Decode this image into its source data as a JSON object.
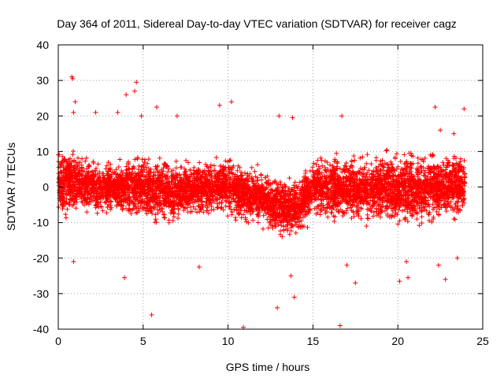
{
  "chart_data": {
    "type": "scatter",
    "title": "Day 364 of 2011, Sidereal Day-to-day VTEC variation (SDTVAR) for receiver cagz",
    "xlabel": "GPS time / hours",
    "ylabel": "SDTVAR / TECUs",
    "xlim": [
      0,
      25
    ],
    "ylim": [
      -40,
      40
    ],
    "xticks": [
      "0",
      "5",
      "10",
      "15",
      "20",
      "25"
    ],
    "yticks": [
      "40",
      "30",
      "20",
      "10",
      "0",
      "-10",
      "-20",
      "-30",
      "-40"
    ],
    "grid": true,
    "marker": "+",
    "series": [
      {
        "name": "SDTVAR",
        "color": "#ff0000",
        "x_range": [
          0,
          23.95
        ],
        "envelope_hours": [
          0,
          1,
          2,
          3,
          4,
          5,
          6,
          7,
          8,
          9,
          10,
          11,
          12,
          13,
          14,
          15,
          16,
          17,
          18,
          19,
          20,
          21,
          22,
          23,
          24
        ],
        "envelope_low": [
          -12,
          -10,
          -9,
          -9,
          -10,
          -11,
          -13,
          -12,
          -10,
          -10,
          -10,
          -12,
          -13,
          -16,
          -16,
          -10,
          -12,
          -12,
          -13,
          -13,
          -14,
          -14,
          -14,
          -12,
          -11
        ],
        "envelope_high": [
          15,
          13,
          9,
          9,
          10,
          11,
          11,
          10,
          9,
          10,
          11,
          8,
          7,
          5,
          4,
          11,
          12,
          11,
          12,
          13,
          12,
          13,
          14,
          13,
          12
        ],
        "outliers": [
          [
            0.8,
            31
          ],
          [
            0.85,
            30.5
          ],
          [
            1.0,
            24
          ],
          [
            0.9,
            21
          ],
          [
            0.9,
            -21
          ],
          [
            2.2,
            21
          ],
          [
            3.5,
            21
          ],
          [
            4.0,
            26
          ],
          [
            4.6,
            29.5
          ],
          [
            4.5,
            27
          ],
          [
            4.9,
            20
          ],
          [
            5.8,
            22.5
          ],
          [
            7.0,
            20
          ],
          [
            9.5,
            23
          ],
          [
            10.2,
            24
          ],
          [
            3.9,
            -25.5
          ],
          [
            5.5,
            -36
          ],
          [
            8.3,
            -22.5
          ],
          [
            10.9,
            -39.5
          ],
          [
            12.9,
            -34
          ],
          [
            13.9,
            -31
          ],
          [
            13.7,
            -25
          ],
          [
            13.0,
            20
          ],
          [
            13.8,
            19.5
          ],
          [
            16.6,
            -39
          ],
          [
            16.7,
            20
          ],
          [
            17.5,
            -27
          ],
          [
            17.0,
            -22
          ],
          [
            20.1,
            -26.5
          ],
          [
            20.6,
            -25.5
          ],
          [
            20.5,
            -21
          ],
          [
            22.2,
            22.5
          ],
          [
            22.5,
            16
          ],
          [
            23.3,
            15
          ],
          [
            23.5,
            -20
          ],
          [
            23.9,
            22
          ],
          [
            22.8,
            -26
          ],
          [
            22.4,
            -22
          ]
        ],
        "approx_points": 6000
      }
    ]
  }
}
